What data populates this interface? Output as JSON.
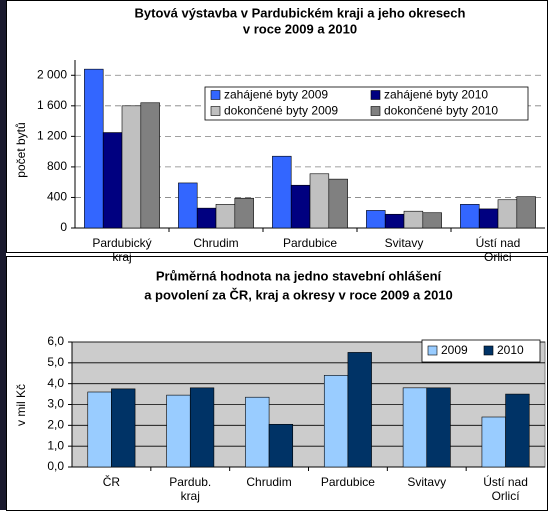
{
  "chart_data": [
    {
      "type": "bar",
      "title": "Bytová výstavba v Pardubickém kraji a jeho okresech",
      "subtitle": "v roce 2009 a 2010",
      "y_label": "počet bytů",
      "categories": [
        "Pardubický kraj",
        "Chrudim",
        "Pardubice",
        "Svitavy",
        "Ústí nad Orlicí"
      ],
      "series": [
        {
          "name": "zahájené byty 2009",
          "color": "#3366ff",
          "values": [
            2080,
            590,
            940,
            230,
            310
          ]
        },
        {
          "name": "zahájené byty 2010",
          "color": "#000080",
          "values": [
            1250,
            260,
            560,
            180,
            250
          ]
        },
        {
          "name": "dokončené byty 2009",
          "color": "#c0c0c0",
          "values": [
            1600,
            310,
            710,
            220,
            370
          ]
        },
        {
          "name": "dokončené byty 2010",
          "color": "#808080",
          "values": [
            1640,
            390,
            640,
            200,
            410
          ]
        }
      ],
      "ylim": [
        0,
        2200
      ],
      "yticks": [
        0,
        400,
        800,
        {
          "value": 1200,
          "label": "1 200"
        },
        {
          "value": 1600,
          "label": "1 600"
        },
        {
          "value": 2000,
          "label": "2 000"
        }
      ],
      "grid": true
    },
    {
      "type": "bar",
      "title": "Průměrná hodnota na jedno stavební ohlášení",
      "subtitle": "a povolení  za ČR, kraj a okresy  v roce 2009 a 2010",
      "y_label": "v mil Kč",
      "categories": [
        "ČR",
        "Pardub. kraj",
        "Chrudim",
        "Pardubice",
        "Svitavy",
        "Ústí nad Orlicí"
      ],
      "series": [
        {
          "name": "2009",
          "color": "#99ccff",
          "values": [
            3.6,
            3.45,
            3.35,
            4.4,
            3.8,
            2.4
          ]
        },
        {
          "name": "2010",
          "color": "#003366",
          "values": [
            3.75,
            3.8,
            2.05,
            5.5,
            3.8,
            3.5
          ]
        }
      ],
      "ylim": [
        0,
        6
      ],
      "yticks": [
        {
          "value": 0,
          "label": "0,0"
        },
        {
          "value": 1,
          "label": "1,0"
        },
        {
          "value": 2,
          "label": "2,0"
        },
        {
          "value": 3,
          "label": "3,0"
        },
        {
          "value": 4,
          "label": "4,0"
        },
        {
          "value": 5,
          "label": "5,0"
        },
        {
          "value": 6,
          "label": "6,0"
        }
      ],
      "grid": true
    }
  ]
}
